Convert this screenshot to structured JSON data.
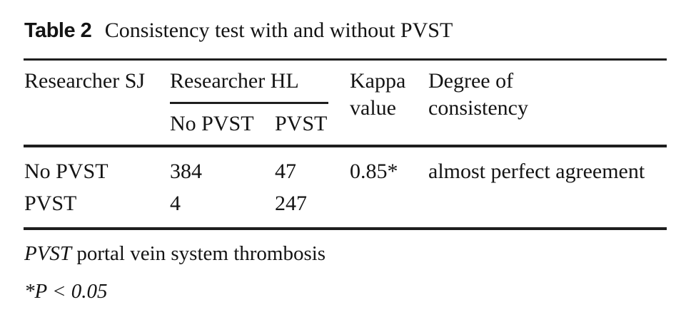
{
  "caption": {
    "label": "Table 2",
    "text": "Consistency test with and without PVST"
  },
  "table": {
    "header": {
      "researcher_sj": "Researcher SJ",
      "researcher_hl_group": "Researcher HL",
      "sub_no_pvst": "No PVST",
      "sub_pvst": "PVST",
      "kappa_line1": "Kappa",
      "kappa_line2": "value",
      "degree_line1": "Degree of",
      "degree_line2": "consistency"
    },
    "rows": [
      {
        "researcher_sj": "No PVST",
        "no_pvst": "384",
        "pvst": "47",
        "kappa": "0.85*",
        "degree": "almost perfect agreement"
      },
      {
        "researcher_sj": "PVST",
        "no_pvst": "4",
        "pvst": "247",
        "kappa": "",
        "degree": ""
      }
    ]
  },
  "footnotes": {
    "abbreviation": "PVST",
    "definition": "portal vein system thrombosis",
    "significance": "*P < 0.05"
  }
}
